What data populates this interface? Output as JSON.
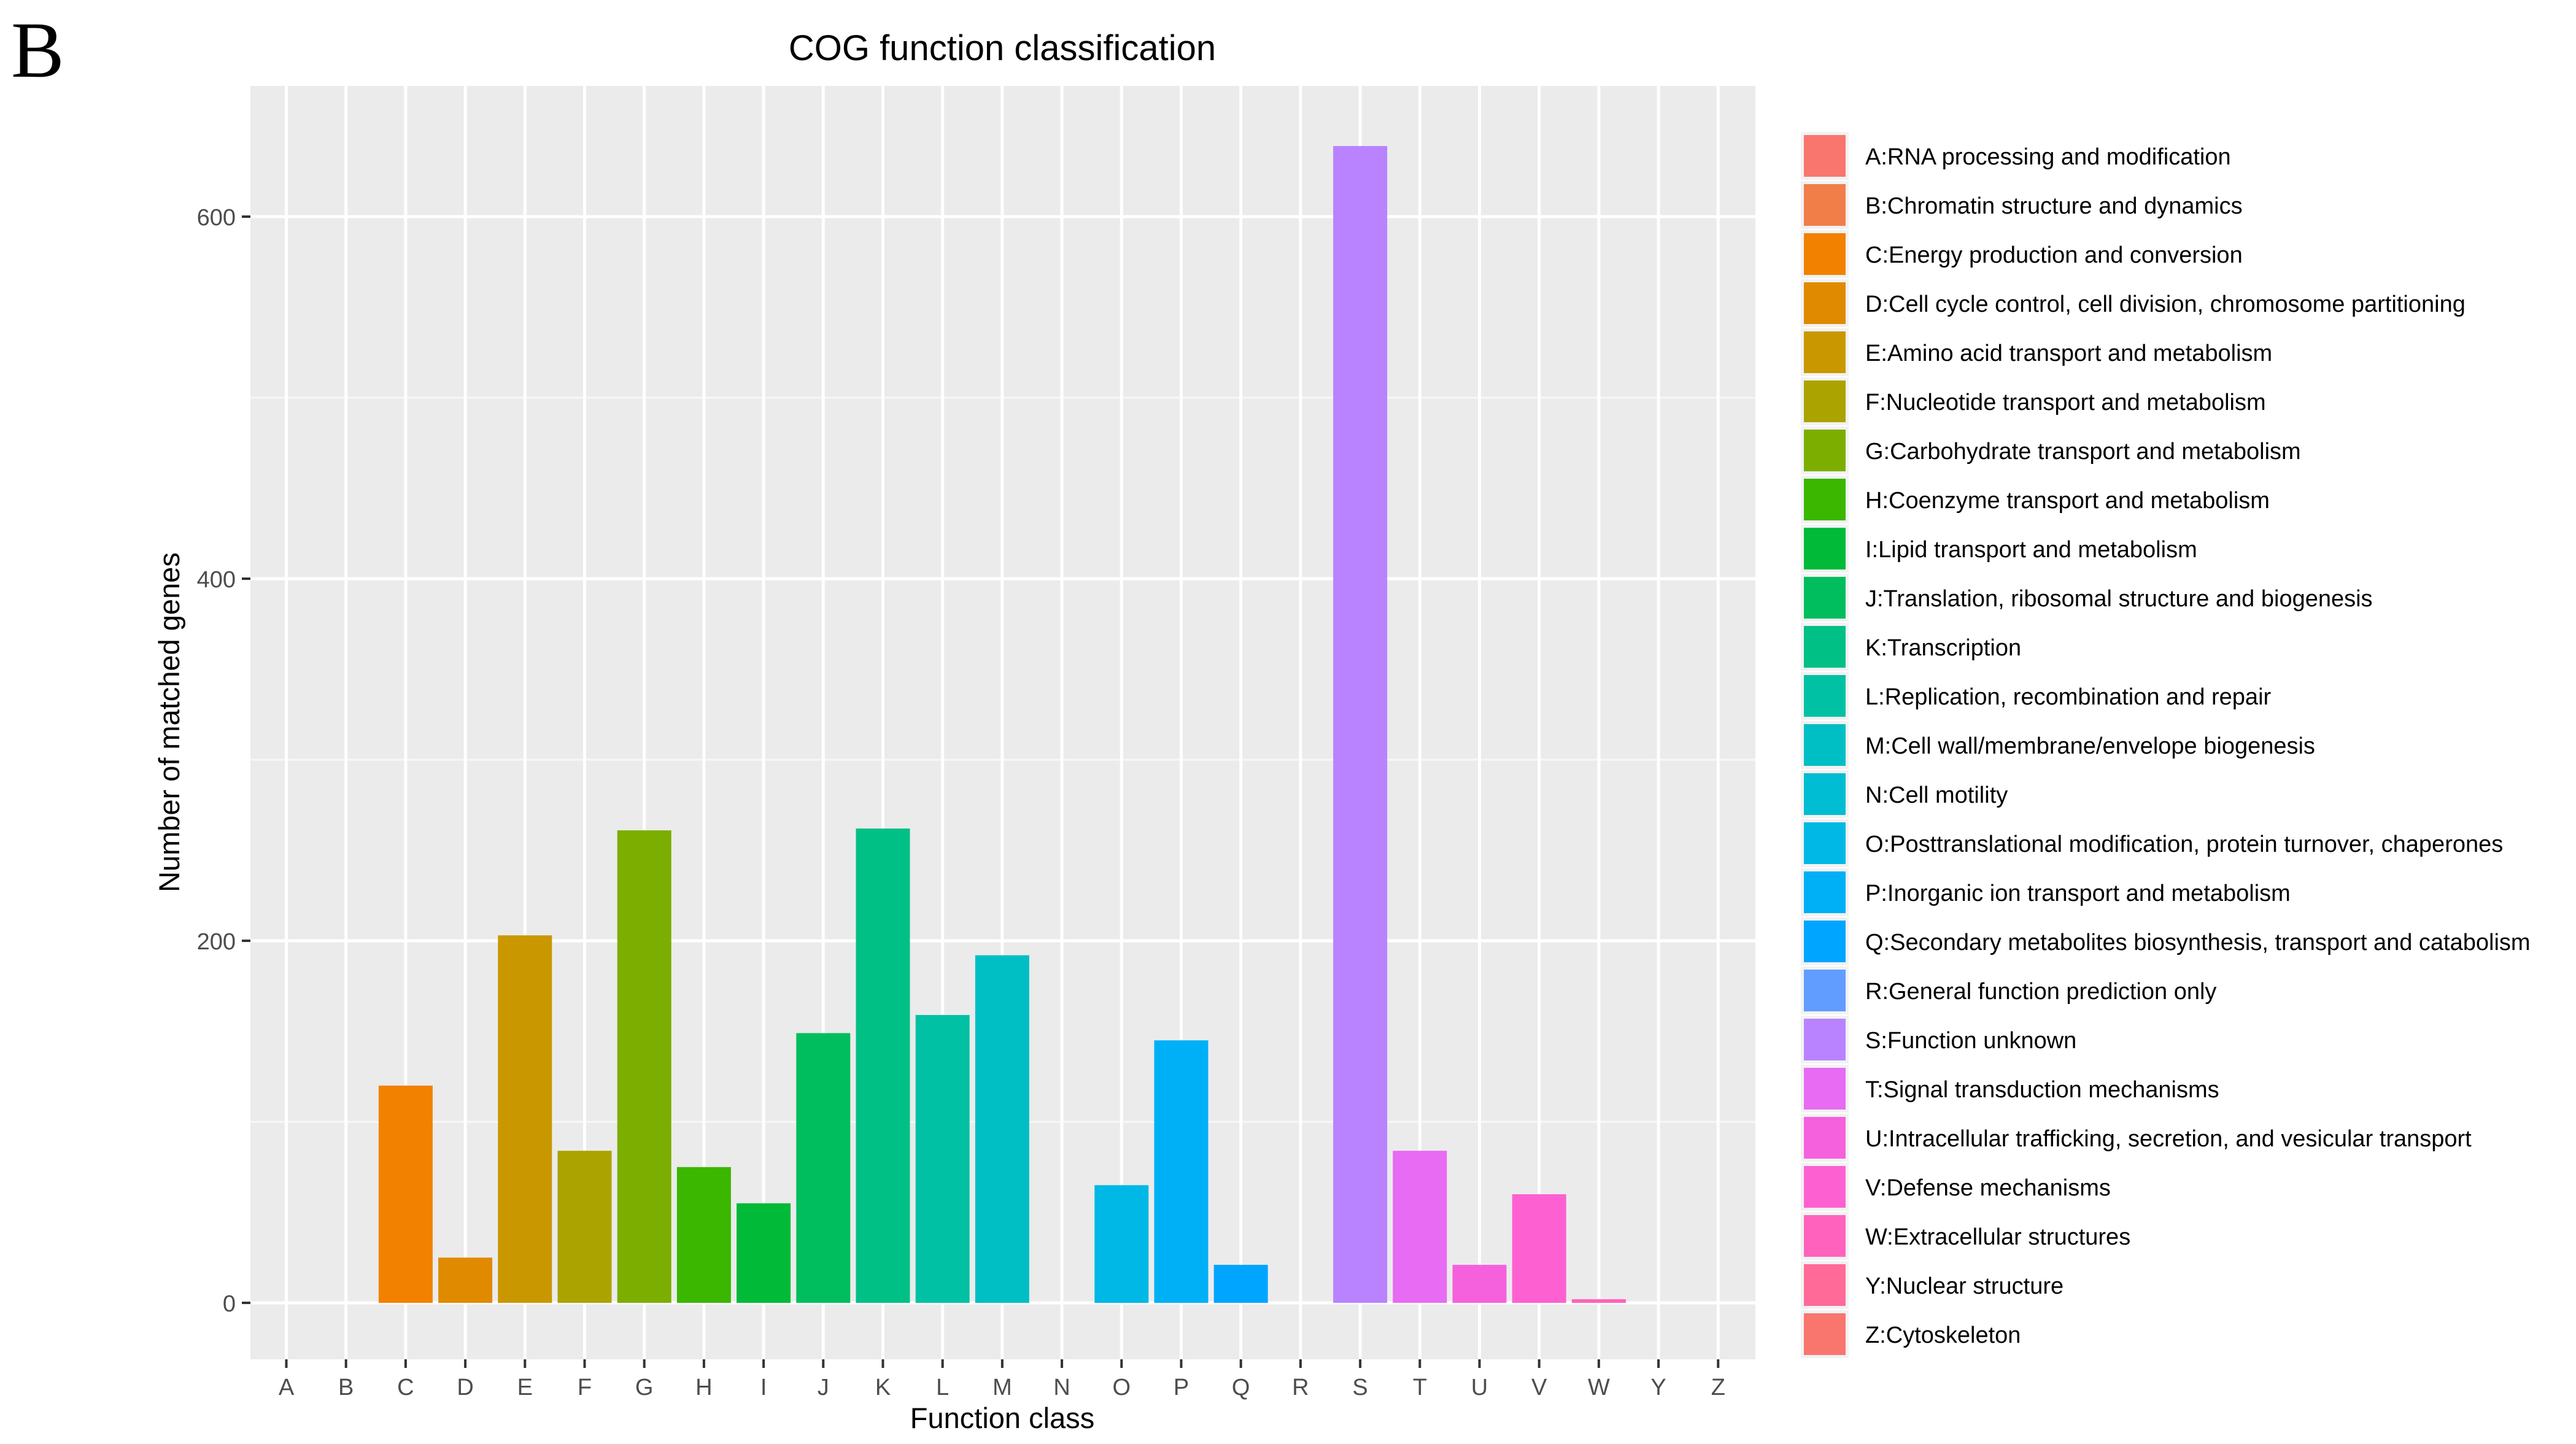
{
  "panel_label": "B",
  "chart_data": {
    "type": "bar",
    "title": "COG function classification",
    "xlabel": "Function class",
    "ylabel": "Number of matched genes",
    "ylim": [
      -60,
      670
    ],
    "yticks": [
      0,
      200,
      400,
      600
    ],
    "grid": true,
    "legend_position": "right",
    "categories": [
      "A",
      "B",
      "C",
      "D",
      "E",
      "F",
      "G",
      "H",
      "I",
      "J",
      "K",
      "L",
      "M",
      "N",
      "O",
      "P",
      "Q",
      "R",
      "S",
      "T",
      "U",
      "V",
      "W",
      "Y",
      "Z"
    ],
    "values": [
      0,
      0,
      120,
      25,
      203,
      84,
      261,
      75,
      55,
      149,
      262,
      159,
      192,
      0,
      65,
      145,
      21,
      0,
      639,
      84,
      21,
      60,
      2,
      0,
      0
    ],
    "colors": [
      "#F8766D",
      "#F17E49",
      "#F28100",
      "#E08A00",
      "#C99800",
      "#ABA300",
      "#7CAE00",
      "#3BB700",
      "#00BA38",
      "#00BE5D",
      "#00C085",
      "#00C1A4",
      "#00BFC4",
      "#00BDD3",
      "#00B8E5",
      "#00B0F6",
      "#00A5FF",
      "#619CFF",
      "#B983FF",
      "#E76BF3",
      "#F561DD",
      "#FD61D1",
      "#FF62BC",
      "#FF6A98",
      "#F8766D"
    ],
    "legend": [
      "A:RNA processing and modification",
      "B:Chromatin structure and dynamics",
      "C:Energy production and conversion",
      "D:Cell cycle control, cell division, chromosome partitioning",
      "E:Amino acid transport and metabolism",
      "F:Nucleotide transport and metabolism",
      "G:Carbohydrate transport and metabolism",
      "H:Coenzyme transport and metabolism",
      "I:Lipid transport and metabolism",
      "J:Translation, ribosomal structure and biogenesis",
      "K:Transcription",
      "L:Replication, recombination and repair",
      "M:Cell wall/membrane/envelope biogenesis",
      "N:Cell motility",
      "O:Posttranslational modification, protein turnover, chaperones",
      "P:Inorganic ion transport and metabolism",
      "Q:Secondary metabolites biosynthesis, transport and catabolism",
      "R:General function prediction only",
      "S:Function unknown",
      "T:Signal transduction mechanisms",
      "U:Intracellular trafficking, secretion, and vesicular transport",
      "V:Defense mechanisms",
      "W:Extracellular structures",
      "Y:Nuclear structure",
      "Z:Cytoskeleton"
    ]
  }
}
